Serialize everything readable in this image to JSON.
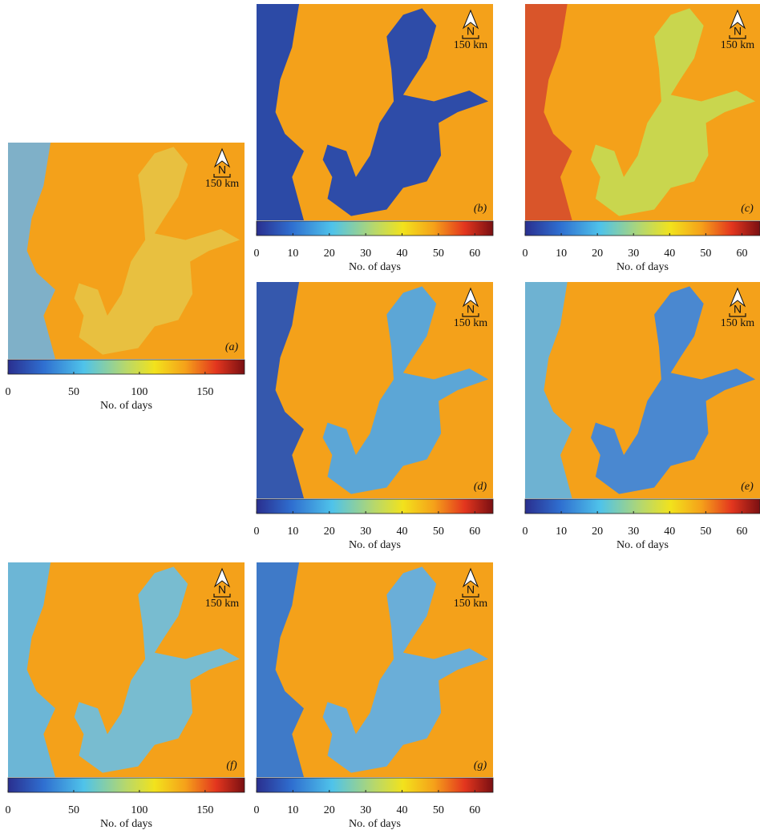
{
  "panels": [
    {
      "label": "(a)",
      "north": "N",
      "scale": "150 km",
      "colorbar": {
        "label": "No. of days",
        "range": [
          0,
          180
        ],
        "ticks": [
          0,
          50,
          100,
          150
        ]
      }
    },
    {
      "label": "(b)",
      "north": "N",
      "scale": "150 km",
      "colorbar": {
        "label": "No. of days",
        "range": [
          0,
          65
        ],
        "ticks": [
          0,
          10,
          20,
          30,
          40,
          50,
          60
        ]
      }
    },
    {
      "label": "(c)",
      "north": "N",
      "scale": "150 km",
      "colorbar": {
        "label": "No. of days",
        "range": [
          0,
          65
        ],
        "ticks": [
          0,
          10,
          20,
          30,
          40,
          50,
          60
        ]
      }
    },
    {
      "label": "(d)",
      "north": "N",
      "scale": "150 km",
      "colorbar": {
        "label": "No. of days",
        "range": [
          0,
          65
        ],
        "ticks": [
          0,
          10,
          20,
          30,
          40,
          50,
          60
        ]
      }
    },
    {
      "label": "(e)",
      "north": "N",
      "scale": "150 km",
      "colorbar": {
        "label": "No. of days",
        "range": [
          0,
          65
        ],
        "ticks": [
          0,
          10,
          20,
          30,
          40,
          50,
          60
        ]
      }
    },
    {
      "label": "(f)",
      "north": "N",
      "scale": "150 km",
      "colorbar": {
        "label": "No. of days",
        "range": [
          0,
          180
        ],
        "ticks": [
          0,
          50,
          100,
          150
        ]
      }
    },
    {
      "label": "(g)",
      "north": "N",
      "scale": "150 km",
      "colorbar": {
        "label": "No. of days",
        "range": [
          0,
          65
        ],
        "ticks": [
          0,
          10,
          20,
          30,
          40,
          50,
          60
        ]
      }
    }
  ]
}
